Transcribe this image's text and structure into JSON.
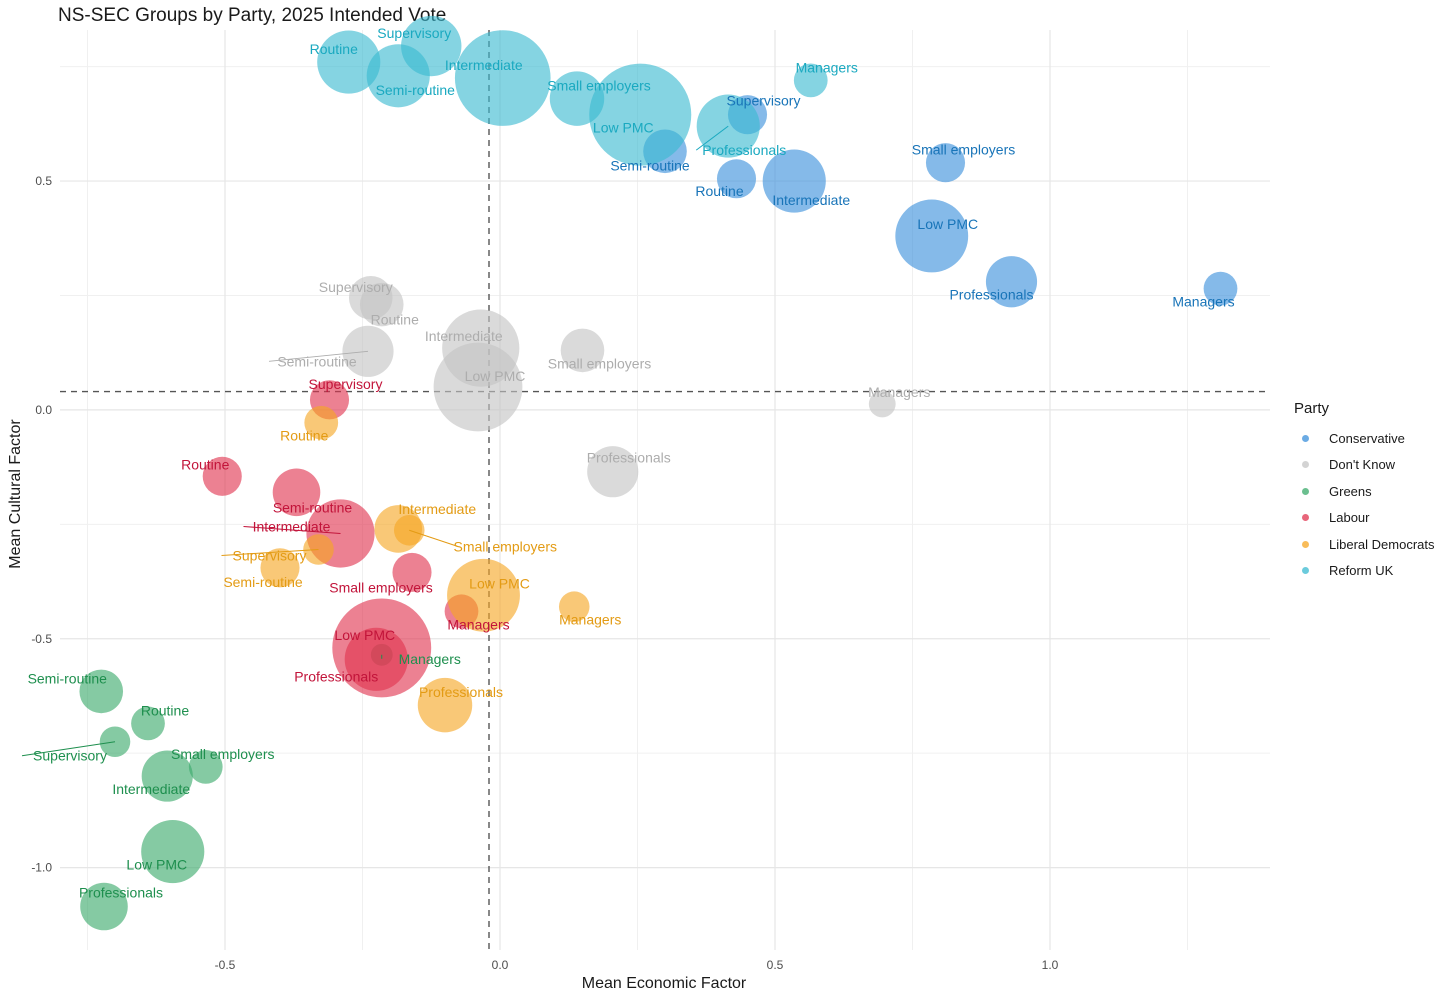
{
  "chart_data": {
    "type": "scatter",
    "title": "NS-SEC Groups by Party, 2025 Intended Vote",
    "xlabel": "Mean Economic Factor",
    "ylabel": "Mean Cultural Factor",
    "xlim": [
      -0.8,
      1.4
    ],
    "ylim": [
      -1.18,
      0.83
    ],
    "xticks": [
      -0.5,
      0.0,
      0.5,
      1.0
    ],
    "yticks": [
      -1.0,
      -0.5,
      0.0,
      0.5
    ],
    "xtick_labels": [
      "-0.5",
      "0.0",
      "0.5",
      "1.0"
    ],
    "ytick_labels": [
      "-1.0",
      "-0.5",
      "0.0",
      "0.5"
    ],
    "reference_lines": {
      "x": -0.02,
      "y": 0.04
    },
    "legend": {
      "title": "Party",
      "entries": [
        "Conservative",
        "Don't Know",
        "Greens",
        "Labour",
        "Liberal Democrats",
        "Reform UK"
      ]
    },
    "series": [
      {
        "name": "Conservative",
        "color": "#3a8fdb",
        "label_color": "#1874b8",
        "points": [
          {
            "label": "Managers",
            "x": 1.31,
            "y": 0.265,
            "size": 2
          },
          {
            "label": "Professionals",
            "x": 0.93,
            "y": 0.28,
            "size": 6
          },
          {
            "label": "Low PMC",
            "x": 0.785,
            "y": 0.38,
            "size": 14
          },
          {
            "label": "Small employers",
            "x": 0.81,
            "y": 0.54,
            "size": 3
          },
          {
            "label": "Intermediate",
            "x": 0.535,
            "y": 0.5,
            "size": 10
          },
          {
            "label": "Routine",
            "x": 0.43,
            "y": 0.505,
            "size": 3
          },
          {
            "label": "Supervisory",
            "x": 0.45,
            "y": 0.645,
            "size": 3
          },
          {
            "label": "Semi-routine",
            "x": 0.3,
            "y": 0.565,
            "size": 4
          }
        ]
      },
      {
        "name": "Don't Know",
        "color": "#c4c4c4",
        "label_color": "#adadad",
        "points": [
          {
            "label": "Supervisory",
            "x": -0.235,
            "y": 0.245,
            "size": 4
          },
          {
            "label": "Routine",
            "x": -0.215,
            "y": 0.23,
            "size": 4
          },
          {
            "label": "Semi-routine",
            "x": -0.24,
            "y": 0.128,
            "size": 6
          },
          {
            "label": "Intermediate",
            "x": -0.035,
            "y": 0.135,
            "size": 16
          },
          {
            "label": "Low PMC",
            "x": -0.04,
            "y": 0.05,
            "size": 22
          },
          {
            "label": "Small employers",
            "x": 0.15,
            "y": 0.13,
            "size": 4
          },
          {
            "label": "Professionals",
            "x": 0.205,
            "y": -0.135,
            "size": 6
          },
          {
            "label": "Managers",
            "x": 0.695,
            "y": 0.013,
            "size": 1
          }
        ]
      },
      {
        "name": "Greens",
        "color": "#3aaa6a",
        "label_color": "#1e8f4e",
        "points": [
          {
            "label": "Semi-routine",
            "x": -0.725,
            "y": -0.615,
            "size": 4
          },
          {
            "label": "Routine",
            "x": -0.64,
            "y": -0.685,
            "size": 2
          },
          {
            "label": "Supervisory",
            "x": -0.7,
            "y": -0.725,
            "size": 1.5
          },
          {
            "label": "Small employers",
            "x": -0.535,
            "y": -0.78,
            "size": 2
          },
          {
            "label": "Intermediate",
            "x": -0.605,
            "y": -0.8,
            "size": 6
          },
          {
            "label": "Low PMC",
            "x": -0.595,
            "y": -0.965,
            "size": 10
          },
          {
            "label": "Professionals",
            "x": -0.72,
            "y": -1.085,
            "size": 5
          },
          {
            "label": "Managers",
            "x": -0.215,
            "y": -0.535,
            "size": 0.5
          }
        ]
      },
      {
        "name": "Labour",
        "color": "#e0334f",
        "label_color": "#c2143a",
        "points": [
          {
            "label": "Supervisory",
            "x": -0.31,
            "y": 0.022,
            "size": 3
          },
          {
            "label": "Routine",
            "x": -0.505,
            "y": -0.145,
            "size": 3
          },
          {
            "label": "Semi-routine",
            "x": -0.37,
            "y": -0.18,
            "size": 5
          },
          {
            "label": "Intermediate",
            "x": -0.29,
            "y": -0.27,
            "size": 12
          },
          {
            "label": "Small employers",
            "x": -0.16,
            "y": -0.355,
            "size": 3
          },
          {
            "label": "Managers",
            "x": -0.07,
            "y": -0.44,
            "size": 2
          },
          {
            "label": "Low PMC",
            "x": -0.215,
            "y": -0.52,
            "size": 28
          },
          {
            "label": "Professionals",
            "x": -0.225,
            "y": -0.545,
            "size": 10
          }
        ]
      },
      {
        "name": "Liberal Democrats",
        "color": "#f5a623",
        "label_color": "#e39b14",
        "points": [
          {
            "label": "Routine",
            "x": -0.325,
            "y": -0.028,
            "size": 2
          },
          {
            "label": "Intermediate",
            "x": -0.185,
            "y": -0.26,
            "size": 5
          },
          {
            "label": "Small employers",
            "x": -0.165,
            "y": -0.263,
            "size": 1.5
          },
          {
            "label": "Supervisory",
            "x": -0.33,
            "y": -0.305,
            "size": 1.5
          },
          {
            "label": "Semi-routine",
            "x": -0.4,
            "y": -0.345,
            "size": 3
          },
          {
            "label": "Low PMC",
            "x": -0.03,
            "y": -0.405,
            "size": 14
          },
          {
            "label": "Managers",
            "x": 0.135,
            "y": -0.43,
            "size": 1.5
          },
          {
            "label": "Professionals",
            "x": -0.1,
            "y": -0.645,
            "size": 7
          }
        ]
      },
      {
        "name": "Reform UK",
        "color": "#3ab9d0",
        "label_color": "#1aa9c0",
        "points": [
          {
            "label": "Routine",
            "x": -0.275,
            "y": 0.76,
            "size": 10
          },
          {
            "label": "Supervisory",
            "x": -0.125,
            "y": 0.795,
            "size": 9
          },
          {
            "label": "Semi-routine",
            "x": -0.185,
            "y": 0.73,
            "size": 10
          },
          {
            "label": "Intermediate",
            "x": 0.005,
            "y": 0.725,
            "size": 26
          },
          {
            "label": "Small employers",
            "x": 0.14,
            "y": 0.68,
            "size": 7
          },
          {
            "label": "Low PMC",
            "x": 0.255,
            "y": 0.645,
            "size": 30
          },
          {
            "label": "Professionals",
            "x": 0.415,
            "y": 0.62,
            "size": 10
          },
          {
            "label": "Managers",
            "x": 0.565,
            "y": 0.72,
            "size": 2
          }
        ]
      }
    ]
  }
}
